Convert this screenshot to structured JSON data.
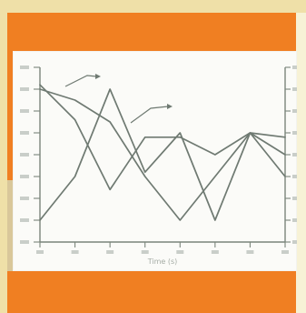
{
  "chart_data": {
    "type": "line",
    "title": "",
    "xlabel": "Time (s)",
    "ylabel": "",
    "grid": false,
    "legend": "none",
    "x": [
      0,
      1,
      2,
      3,
      4,
      5,
      6,
      7
    ],
    "series": [
      {
        "values": [
          7,
          6.5,
          5.5,
          3,
          1,
          3,
          5,
          3
        ]
      },
      {
        "values": [
          1,
          3,
          7,
          3.2,
          5,
          1,
          5,
          4
        ]
      },
      {
        "values": [
          7.2,
          5.6,
          2.4,
          4.8,
          4.8,
          4,
          5,
          4.8
        ]
      }
    ],
    "colors": {
      "line": "#6f7a72",
      "axis": "#7b857b",
      "background": "#fbfbf8",
      "frame": "#f07f22"
    }
  }
}
